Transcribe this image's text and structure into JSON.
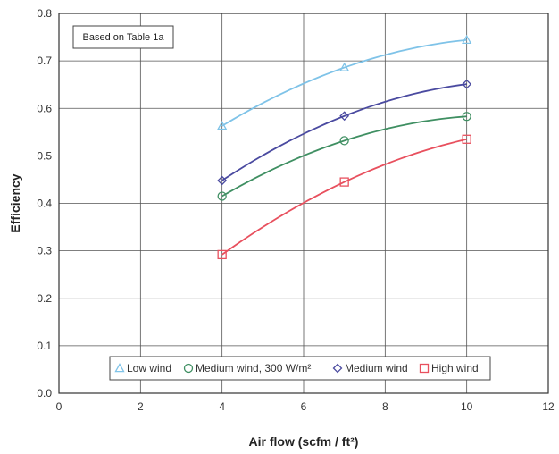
{
  "chart_data": {
    "type": "line",
    "xlabel": "Air flow (scfm / ft²)",
    "ylabel": "Efficiency",
    "xlim": [
      0,
      12
    ],
    "ylim": [
      0,
      0.8
    ],
    "x_ticks": [
      "0",
      "2",
      "4",
      "6",
      "8",
      "10",
      "12"
    ],
    "y_ticks": [
      "0.0",
      "0.1",
      "0.2",
      "0.3",
      "0.4",
      "0.5",
      "0.6",
      "0.7",
      "0.8"
    ],
    "grid": true,
    "annotation": "Based on Table 1a",
    "legend_position": "bottom-center",
    "series": [
      {
        "name": "Low wind",
        "marker": "triangle",
        "color": "#7fc3e8",
        "x": [
          4,
          7,
          10
        ],
        "y": [
          0.563,
          0.686,
          0.744
        ]
      },
      {
        "name": "Medium wind, 300 W/m²",
        "marker": "circle",
        "color": "#3f8f62",
        "x": [
          4,
          7,
          10
        ],
        "y": [
          0.415,
          0.532,
          0.583
        ]
      },
      {
        "name": "Medium wind",
        "marker": "diamond",
        "color": "#4a4aa0",
        "x": [
          4,
          7,
          10
        ],
        "y": [
          0.448,
          0.584,
          0.651
        ]
      },
      {
        "name": "High wind",
        "marker": "square",
        "color": "#e8505e",
        "x": [
          4,
          7,
          10
        ],
        "y": [
          0.292,
          0.445,
          0.535
        ]
      }
    ]
  }
}
